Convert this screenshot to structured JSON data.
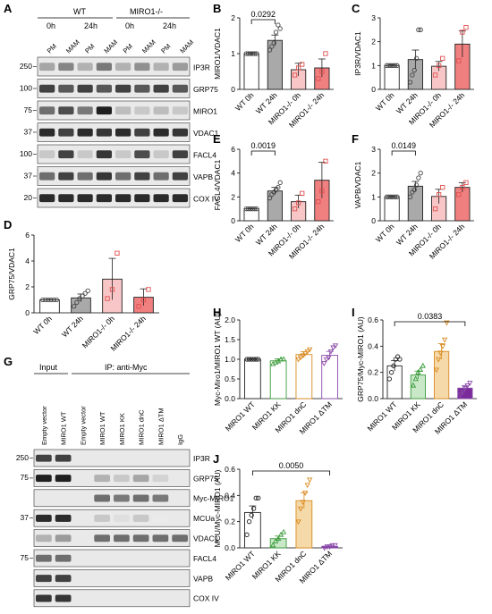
{
  "panel_letters": {
    "A": "A",
    "B": "B",
    "C": "C",
    "D": "D",
    "E": "E",
    "F": "F",
    "G": "G",
    "H": "H",
    "I": "I",
    "J": "J"
  },
  "blotA": {
    "group_wt": "WT",
    "group_ko": "MIRO1-/-",
    "time_0": "0h",
    "time_24": "24h",
    "lanes": [
      "PM",
      "MAM",
      "PM",
      "MAM",
      "PM",
      "MAM",
      "PM",
      "MAM"
    ],
    "markers": [
      "250",
      "100",
      "75",
      "37",
      "100",
      "37",
      "20"
    ],
    "bands": [
      "IP3R",
      "GRP75",
      "MIRO1",
      "VDAC1",
      "FACL4",
      "VAPB",
      "COX IV"
    ],
    "intensity": [
      [
        0.35,
        0.5,
        0.3,
        0.55,
        0.3,
        0.45,
        0.3,
        0.4
      ],
      [
        0.8,
        0.7,
        0.8,
        0.7,
        0.8,
        0.7,
        0.8,
        0.7
      ],
      [
        0.6,
        0.75,
        0.55,
        0.95,
        0.25,
        0.2,
        0.25,
        0.2
      ],
      [
        0.9,
        0.8,
        0.9,
        0.85,
        0.9,
        0.8,
        0.9,
        0.85
      ],
      [
        0.2,
        0.8,
        0.2,
        0.85,
        0.2,
        0.75,
        0.2,
        0.8
      ],
      [
        0.6,
        0.8,
        0.6,
        0.85,
        0.6,
        0.8,
        0.6,
        0.8
      ],
      [
        0.9,
        0.9,
        0.9,
        0.9,
        0.9,
        0.9,
        0.9,
        0.9
      ]
    ]
  },
  "blotG": {
    "header_input": "Input",
    "header_ip": "IP: anti-Myc",
    "lanes": [
      "Empty vector",
      "MIRO1 WT",
      "Empty vector",
      "MIRO1 WT",
      "MIRO1 KK",
      "MIRO1 dnC",
      "MIRO1 ΔTM",
      "IgG"
    ],
    "markers": [
      "250",
      "75",
      "",
      "37",
      "",
      "75",
      "",
      ""
    ],
    "bands": [
      "IP3R",
      "GRP75",
      "Myc-MIRO1",
      "MCUa",
      "VDAC1",
      "FACL4",
      "VAPB",
      "COX IV"
    ],
    "intensity": [
      [
        0.8,
        0.8,
        0,
        0,
        0,
        0,
        0,
        0
      ],
      [
        0.95,
        0.95,
        0,
        0.3,
        0.2,
        0.35,
        0.15,
        0
      ],
      [
        0,
        0,
        0,
        0.6,
        0.55,
        0.6,
        0.55,
        0
      ],
      [
        0.9,
        0.9,
        0,
        0.2,
        0.1,
        0.2,
        0.05,
        0
      ],
      [
        0.3,
        0.4,
        0,
        0.6,
        0.6,
        0.6,
        0.6,
        0.6
      ],
      [
        0.6,
        0.6,
        0,
        0,
        0,
        0,
        0,
        0
      ],
      [
        0.8,
        0.8,
        0,
        0,
        0,
        0,
        0,
        0
      ],
      [
        0.85,
        0.85,
        0,
        0,
        0,
        0,
        0,
        0
      ]
    ]
  },
  "chart_data": [
    {
      "panel": "B",
      "type": "bar",
      "ylabel": "MIRO1/VDAC1",
      "ylim": [
        0,
        2
      ],
      "yticks": [
        0,
        1,
        2
      ],
      "categories": [
        "WT 0h",
        "WT 24h",
        "MIRO1-/- 0h",
        "MIRO1-/- 24h"
      ],
      "values": [
        1.0,
        1.37,
        0.55,
        0.6
      ],
      "errors": [
        0.03,
        0.15,
        0.18,
        0.25
      ],
      "colors": [
        "#ffffff",
        "#a9a9a9",
        "#f8c6c6",
        "#f07f7f"
      ],
      "points": [
        [
          1,
          1,
          1,
          1,
          1,
          1
        ],
        [
          1.1,
          1.2,
          1.3,
          1.6,
          1.8,
          1.7
        ],
        [
          0.4,
          0.6,
          0.7
        ],
        [
          0.3,
          0.5,
          1.0
        ]
      ],
      "sig": [
        {
          "from": 0,
          "to": 1,
          "label": "0.0292"
        }
      ]
    },
    {
      "panel": "C",
      "type": "bar",
      "ylabel": "IP3R/VDAC1",
      "ylim": [
        0,
        3
      ],
      "yticks": [
        0,
        1,
        2,
        3
      ],
      "categories": [
        "WT 0h",
        "WT 24h",
        "MIRO1-/- 0h",
        "MIRO1-/- 24h"
      ],
      "values": [
        1.0,
        1.25,
        0.97,
        1.9
      ],
      "errors": [
        0.03,
        0.4,
        0.2,
        0.55
      ],
      "colors": [
        "#ffffff",
        "#a9a9a9",
        "#f8c6c6",
        "#f07f7f"
      ],
      "points": [
        [
          1,
          1,
          1,
          1,
          1,
          1
        ],
        [
          0.3,
          0.6,
          0.8,
          1.3,
          2.5,
          2.5
        ],
        [
          0.6,
          1.0,
          1.3
        ],
        [
          1.2,
          2.4,
          2.6
        ]
      ],
      "sig": []
    },
    {
      "panel": "D",
      "type": "bar",
      "ylabel": "GRP75/VDAC1",
      "ylim": [
        0,
        6
      ],
      "yticks": [
        0,
        2,
        4,
        6
      ],
      "categories": [
        "WT 0h",
        "WT 24h",
        "MIRO1-/- 0h",
        "MIRO1-/- 24h"
      ],
      "values": [
        1.0,
        1.15,
        2.6,
        1.2
      ],
      "errors": [
        0.03,
        0.3,
        1.6,
        0.65
      ],
      "colors": [
        "#ffffff",
        "#a9a9a9",
        "#f8c6c6",
        "#f07f7f"
      ],
      "points": [
        [
          1,
          1,
          1,
          1,
          1,
          1
        ],
        [
          0.5,
          0.8,
          1.1,
          1.3,
          1.5,
          1.7
        ],
        [
          1.1,
          1.8,
          4.6
        ],
        [
          0.5,
          1.0,
          1.8
        ]
      ],
      "sig": []
    },
    {
      "panel": "E",
      "type": "bar",
      "ylabel": "FACL4/VDAC1",
      "ylim": [
        0,
        6
      ],
      "yticks": [
        0,
        2,
        4,
        6
      ],
      "categories": [
        "WT 0h",
        "WT 24h",
        "MIRO1-/- 0h",
        "MIRO1-/- 24h"
      ],
      "values": [
        1.0,
        2.5,
        1.6,
        3.4
      ],
      "errors": [
        0.03,
        0.3,
        0.55,
        1.5
      ],
      "colors": [
        "#ffffff",
        "#a9a9a9",
        "#f8c6c6",
        "#f07f7f"
      ],
      "points": [
        [
          1,
          1,
          1,
          1,
          1,
          1
        ],
        [
          1.9,
          2.2,
          2.4,
          2.6,
          2.8,
          3.2
        ],
        [
          1.0,
          1.5,
          2.3
        ],
        [
          1.6,
          2.5,
          5.0
        ]
      ],
      "sig": [
        {
          "from": 0,
          "to": 1,
          "label": "0.0019"
        }
      ]
    },
    {
      "panel": "F",
      "type": "bar",
      "ylabel": "VAPB/VDAC1",
      "ylim": [
        0,
        3
      ],
      "yticks": [
        0,
        1,
        2,
        3
      ],
      "categories": [
        "WT 0h",
        "WT 24h",
        "MIRO1-/- 0h",
        "MIRO1-/- 24h"
      ],
      "values": [
        1.0,
        1.45,
        1.02,
        1.4
      ],
      "errors": [
        0.03,
        0.2,
        0.3,
        0.2
      ],
      "colors": [
        "#ffffff",
        "#a9a9a9",
        "#f8c6c6",
        "#f07f7f"
      ],
      "points": [
        [
          1,
          1,
          1,
          1,
          1,
          1
        ],
        [
          1.0,
          1.2,
          1.3,
          1.5,
          1.8,
          2.0
        ],
        [
          0.5,
          1.1,
          1.4
        ],
        [
          1.1,
          1.4,
          1.6
        ]
      ],
      "sig": [
        {
          "from": 0,
          "to": 1,
          "label": "0.0149"
        }
      ]
    },
    {
      "panel": "H",
      "type": "bar",
      "ylabel": "Myc-Miro1/MIRO1 WT (AU)",
      "ylim": [
        0,
        2
      ],
      "yticks": [
        0,
        0.5,
        1.0,
        1.5,
        2.0
      ],
      "categories": [
        "MIRO1 WT",
        "MIRO1 KK",
        "MIRO1 dnC",
        "MIRO1 ΔTM"
      ],
      "values": [
        1.0,
        0.96,
        1.12,
        1.1
      ],
      "errors": [
        0.01,
        0.05,
        0.07,
        0.1
      ],
      "colors": [
        "#ffffff",
        "#ffffff",
        "#ffffff",
        "#ffffff"
      ],
      "edge": [
        "#222222",
        "#3a9a3a",
        "#d98a20",
        "#8a4aa8"
      ],
      "points": [
        [
          1,
          1,
          1,
          1,
          1,
          1
        ],
        [
          0.88,
          0.92,
          0.95,
          1.0,
          1.0
        ],
        [
          1.0,
          1.05,
          1.1,
          1.15,
          1.2,
          1.25
        ],
        [
          0.9,
          1.0,
          1.05,
          1.2,
          1.3,
          1.35
        ]
      ],
      "sig": []
    },
    {
      "panel": "I",
      "type": "bar",
      "ylabel": "GRP75/Myc-MIRO1 (AU)",
      "ylim": [
        0,
        0.6
      ],
      "yticks": [
        0,
        0.2,
        0.4,
        0.6
      ],
      "categories": [
        "MIRO1 WT",
        "MIRO1 KK",
        "MIRO1 dnC",
        "MIRO1 ΔTM"
      ],
      "values": [
        0.25,
        0.18,
        0.36,
        0.08
      ],
      "errors": [
        0.04,
        0.03,
        0.06,
        0.02
      ],
      "colors": [
        "#ffffff",
        "#c8e8c8",
        "#f5d9a8",
        "#7a2a9a"
      ],
      "edge": [
        "#222222",
        "#3a9a3a",
        "#d98a20",
        "#8a4aa8"
      ],
      "points": [
        [
          0.15,
          0.2,
          0.25,
          0.3,
          0.32,
          0.3
        ],
        [
          0.1,
          0.15,
          0.2,
          0.22,
          0.25
        ],
        [
          0.22,
          0.3,
          0.35,
          0.4,
          0.45,
          0.58
        ],
        [
          0.03,
          0.05,
          0.08,
          0.1,
          0.12
        ]
      ],
      "sig": [
        {
          "from": 0,
          "to": 3,
          "label": "0.0383"
        }
      ]
    },
    {
      "panel": "J",
      "type": "bar",
      "ylabel": "MCU/Myc-MIRO1 (AU)",
      "ylim": [
        0,
        0.6
      ],
      "yticks": [
        0,
        0.2,
        0.4,
        0.6
      ],
      "categories": [
        "MIRO1 WT",
        "MIRO1 KK",
        "MIRO1 dnC",
        "MIRO1 ΔTM"
      ],
      "values": [
        0.27,
        0.07,
        0.36,
        0.01
      ],
      "errors": [
        0.05,
        0.02,
        0.06,
        0.005
      ],
      "colors": [
        "#ffffff",
        "#c8e8c8",
        "#f5d9a8",
        "#7a2a9a"
      ],
      "edge": [
        "#222222",
        "#3a9a3a",
        "#d98a20",
        "#8a4aa8"
      ],
      "points": [
        [
          0.1,
          0.2,
          0.25,
          0.3,
          0.38,
          0.38
        ],
        [
          0.02,
          0.05,
          0.07,
          0.1,
          0.12
        ],
        [
          0.2,
          0.3,
          0.35,
          0.42,
          0.48,
          0.52
        ],
        [
          0.0,
          0.01,
          0.01,
          0.02,
          0.02
        ]
      ],
      "sig": [
        {
          "from": 0,
          "to": 3,
          "label": "0.0050"
        }
      ]
    }
  ]
}
